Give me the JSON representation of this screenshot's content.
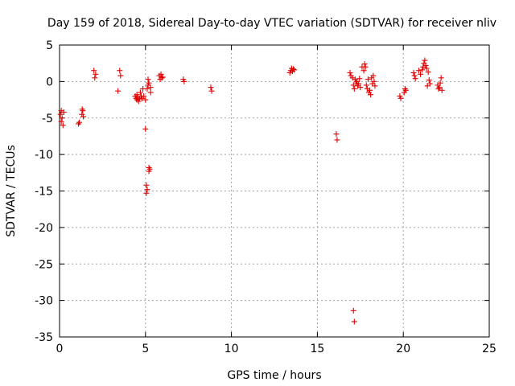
{
  "chart_data": {
    "type": "scatter",
    "title": "Day 159 of 2018, Sidereal Day-to-day VTEC variation (SDTVAR) for receiver nliv",
    "xlabel": "GPS time / hours",
    "ylabel": "SDTVAR / TECUs",
    "xlim": [
      0,
      25
    ],
    "ylim": [
      -35,
      5
    ],
    "xticks": [
      0,
      5,
      10,
      15,
      20,
      25
    ],
    "yticks": [
      5,
      0,
      -5,
      -10,
      -15,
      -20,
      -25,
      -30,
      -35
    ],
    "grid": true,
    "marker": "+",
    "color": "#e00000",
    "series": [
      {
        "name": "SDTVAR",
        "x": [
          0.05,
          0.1,
          0.1,
          0.15,
          0.2,
          0.25,
          1.1,
          1.15,
          1.3,
          1.32,
          1.35,
          1.38,
          2.0,
          2.05,
          2.1,
          3.4,
          3.5,
          3.55,
          4.4,
          4.45,
          4.5,
          4.5,
          4.55,
          4.6,
          4.65,
          4.7,
          4.75,
          4.8,
          4.85,
          4.9,
          5.0,
          5.0,
          5.05,
          5.05,
          5.1,
          5.1,
          5.15,
          5.15,
          5.2,
          5.2,
          5.2,
          5.25,
          5.3,
          5.3,
          5.8,
          5.85,
          5.9,
          5.95,
          6.0,
          7.2,
          7.25,
          8.8,
          8.85,
          13.4,
          13.45,
          13.5,
          13.55,
          13.6,
          13.65,
          16.1,
          16.15,
          16.9,
          16.95,
          17.05,
          17.1,
          17.15,
          17.2,
          17.25,
          17.3,
          17.35,
          17.4,
          17.45,
          17.5,
          17.6,
          17.7,
          17.75,
          17.8,
          17.85,
          17.9,
          17.95,
          18.0,
          18.05,
          18.1,
          18.15,
          18.2,
          18.25,
          18.3,
          18.35,
          19.8,
          19.85,
          20.05,
          20.1,
          20.15,
          20.6,
          20.65,
          20.7,
          20.9,
          21.0,
          21.1,
          21.15,
          21.2,
          21.25,
          21.3,
          21.35,
          21.4,
          21.45,
          21.5,
          21.55,
          22.0,
          22.05,
          22.1,
          22.15,
          22.2,
          22.25,
          17.1,
          17.15
        ],
        "y": [
          -4.5,
          -5.5,
          -4.0,
          -5.0,
          -6.0,
          -4.2,
          -5.8,
          -5.6,
          -4.5,
          -3.8,
          -4.0,
          -4.8,
          1.5,
          0.5,
          1.0,
          -1.3,
          1.5,
          0.8,
          -2.0,
          -2.3,
          -1.8,
          -2.5,
          -2.2,
          -2.7,
          -2.4,
          -1.5,
          -2.0,
          -2.3,
          -1.0,
          -2.0,
          -2.5,
          -6.5,
          -14.2,
          -15.3,
          -14.8,
          -1.0,
          -0.5,
          0.3,
          -0.2,
          -12.3,
          -11.8,
          -12.0,
          -0.8,
          -1.5,
          0.8,
          0.3,
          1.0,
          0.5,
          0.6,
          0.3,
          0.0,
          -0.8,
          -1.3,
          1.2,
          1.5,
          1.8,
          1.4,
          1.7,
          1.6,
          -7.2,
          -8.0,
          1.2,
          0.8,
          0.5,
          -0.5,
          -1.0,
          0.3,
          -0.2,
          0.0,
          -0.6,
          -0.3,
          0.4,
          -0.8,
          2.0,
          1.5,
          2.4,
          2.0,
          -0.5,
          -1.0,
          0.3,
          -1.5,
          -1.2,
          -1.8,
          0.5,
          -0.3,
          0.8,
          0.0,
          -0.6,
          -2.0,
          -2.3,
          -1.5,
          -1.0,
          -1.2,
          1.2,
          0.8,
          0.4,
          1.5,
          1.0,
          1.6,
          2.0,
          2.5,
          2.9,
          2.2,
          1.8,
          -0.6,
          1.3,
          0.2,
          -0.3,
          -0.5,
          -1.0,
          -0.8,
          -0.2,
          0.5,
          -1.2,
          -31.4,
          -32.9
        ]
      }
    ]
  }
}
